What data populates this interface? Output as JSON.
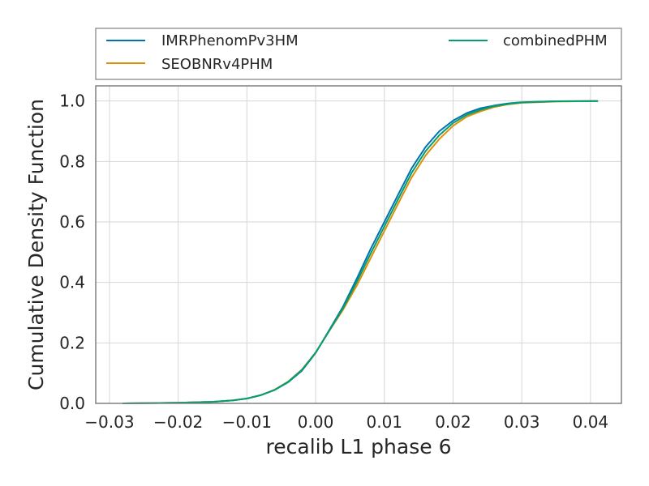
{
  "chart_data": {
    "type": "line",
    "title": "",
    "xlabel": "recalib L1 phase 6",
    "ylabel": "Cumulative Density Function",
    "xlim": [
      -0.032,
      0.0445
    ],
    "ylim": [
      0.0,
      1.05
    ],
    "xticks": [
      -0.03,
      -0.02,
      -0.01,
      0.0,
      0.01,
      0.02,
      0.03,
      0.04
    ],
    "xtick_labels": [
      "−0.03",
      "−0.02",
      "−0.01",
      "0.00",
      "0.01",
      "0.02",
      "0.03",
      "0.04"
    ],
    "yticks": [
      0.0,
      0.2,
      0.4,
      0.6,
      0.8,
      1.0
    ],
    "ytick_labels": [
      "0.0",
      "0.2",
      "0.4",
      "0.6",
      "0.8",
      "1.0"
    ],
    "grid": true,
    "legend_position": "top, above plot, two columns",
    "series": [
      {
        "name": "IMRPhenomPv3HM",
        "color": "#0072b2",
        "x": [
          -0.028,
          -0.02,
          -0.015,
          -0.012,
          -0.01,
          -0.008,
          -0.006,
          -0.004,
          -0.002,
          0.0,
          0.002,
          0.004,
          0.006,
          0.008,
          0.01,
          0.012,
          0.014,
          0.016,
          0.018,
          0.02,
          0.022,
          0.024,
          0.026,
          0.028,
          0.03,
          0.035,
          0.041
        ],
        "y": [
          0.0,
          0.002,
          0.005,
          0.01,
          0.016,
          0.027,
          0.044,
          0.07,
          0.108,
          0.167,
          0.243,
          0.32,
          0.413,
          0.51,
          0.6,
          0.69,
          0.778,
          0.848,
          0.9,
          0.935,
          0.96,
          0.976,
          0.985,
          0.992,
          0.996,
          0.999,
          1.0
        ]
      },
      {
        "name": "SEOBNRv4PHM",
        "color": "#de8f05",
        "x": [
          -0.028,
          -0.02,
          -0.015,
          -0.012,
          -0.01,
          -0.008,
          -0.006,
          -0.004,
          -0.002,
          0.0,
          0.002,
          0.004,
          0.006,
          0.008,
          0.01,
          0.012,
          0.014,
          0.016,
          0.018,
          0.02,
          0.022,
          0.024,
          0.026,
          0.028,
          0.03,
          0.035,
          0.041
        ],
        "y": [
          0.0,
          0.002,
          0.005,
          0.01,
          0.016,
          0.027,
          0.045,
          0.072,
          0.112,
          0.168,
          0.24,
          0.31,
          0.39,
          0.48,
          0.57,
          0.66,
          0.748,
          0.82,
          0.874,
          0.918,
          0.948,
          0.966,
          0.98,
          0.989,
          0.994,
          0.998,
          1.0
        ]
      },
      {
        "name": "combinedPHM",
        "color": "#029e73",
        "x": [
          -0.028,
          -0.02,
          -0.015,
          -0.012,
          -0.01,
          -0.008,
          -0.006,
          -0.004,
          -0.002,
          0.0,
          0.002,
          0.004,
          0.006,
          0.008,
          0.01,
          0.012,
          0.014,
          0.016,
          0.018,
          0.02,
          0.022,
          0.024,
          0.026,
          0.028,
          0.03,
          0.035,
          0.041
        ],
        "y": [
          0.0,
          0.002,
          0.005,
          0.01,
          0.016,
          0.027,
          0.044,
          0.071,
          0.11,
          0.168,
          0.241,
          0.315,
          0.402,
          0.495,
          0.585,
          0.675,
          0.763,
          0.834,
          0.887,
          0.927,
          0.954,
          0.971,
          0.983,
          0.99,
          0.995,
          0.999,
          1.0
        ]
      }
    ]
  }
}
